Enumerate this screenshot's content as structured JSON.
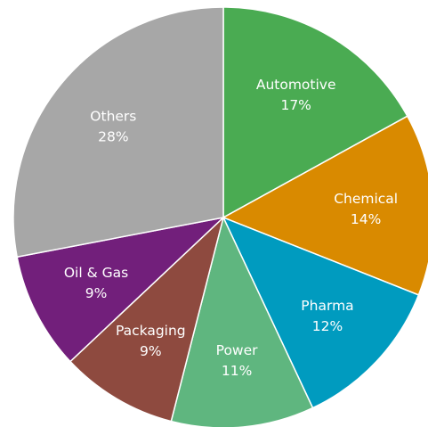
{
  "chart_data": {
    "type": "pie",
    "title": "",
    "slices": [
      {
        "label": "Automotive",
        "value": 17,
        "display": "17%",
        "color": "#4aab52"
      },
      {
        "label": "Chemical",
        "value": 14,
        "display": "14%",
        "color": "#d98a00"
      },
      {
        "label": "Pharma",
        "value": 12,
        "display": "12%",
        "color": "#009bbf"
      },
      {
        "label": "Power",
        "value": 11,
        "display": "11%",
        "color": "#5fb67f"
      },
      {
        "label": "Packaging",
        "value": 9,
        "display": "9%",
        "color": "#8e4a3f"
      },
      {
        "label": "Oil & Gas",
        "value": 9,
        "display": "9%",
        "color": "#721f7b"
      },
      {
        "label": "Others",
        "value": 28,
        "display": "28%",
        "color": "#a7a7a7"
      }
    ],
    "start": "top",
    "direction": "clockwise",
    "legend": "none",
    "label_style": "inside"
  }
}
